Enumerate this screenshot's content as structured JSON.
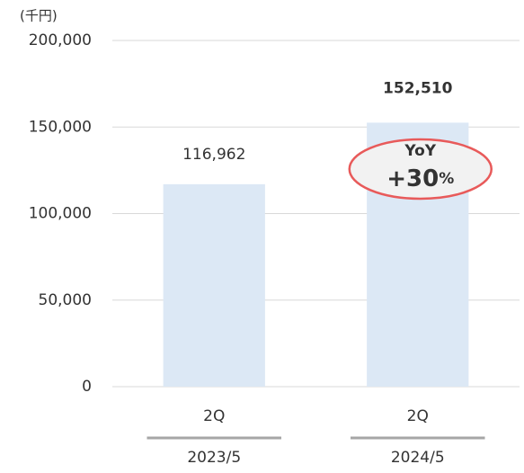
{
  "chart_data": {
    "type": "bar",
    "unit_label": "(千円)",
    "categories": [
      "2Q",
      "2Q"
    ],
    "groups": [
      "2023/5",
      "2024/5"
    ],
    "values": [
      116962,
      152510
    ],
    "value_labels": [
      "116,962",
      "152,510"
    ],
    "color": "#dce8f5",
    "ylim": [
      0,
      200000
    ],
    "yticks": [
      0,
      {
        "value": 50000,
        "label": "50,000"
      },
      {
        "value": 100000,
        "label": "100,000"
      },
      {
        "value": 150000,
        "label": "150,000"
      },
      {
        "value": 200000,
        "label": "200,000"
      }
    ],
    "grid": true,
    "annotation": {
      "label": "YoY",
      "value": "+30",
      "unit": "%"
    }
  }
}
